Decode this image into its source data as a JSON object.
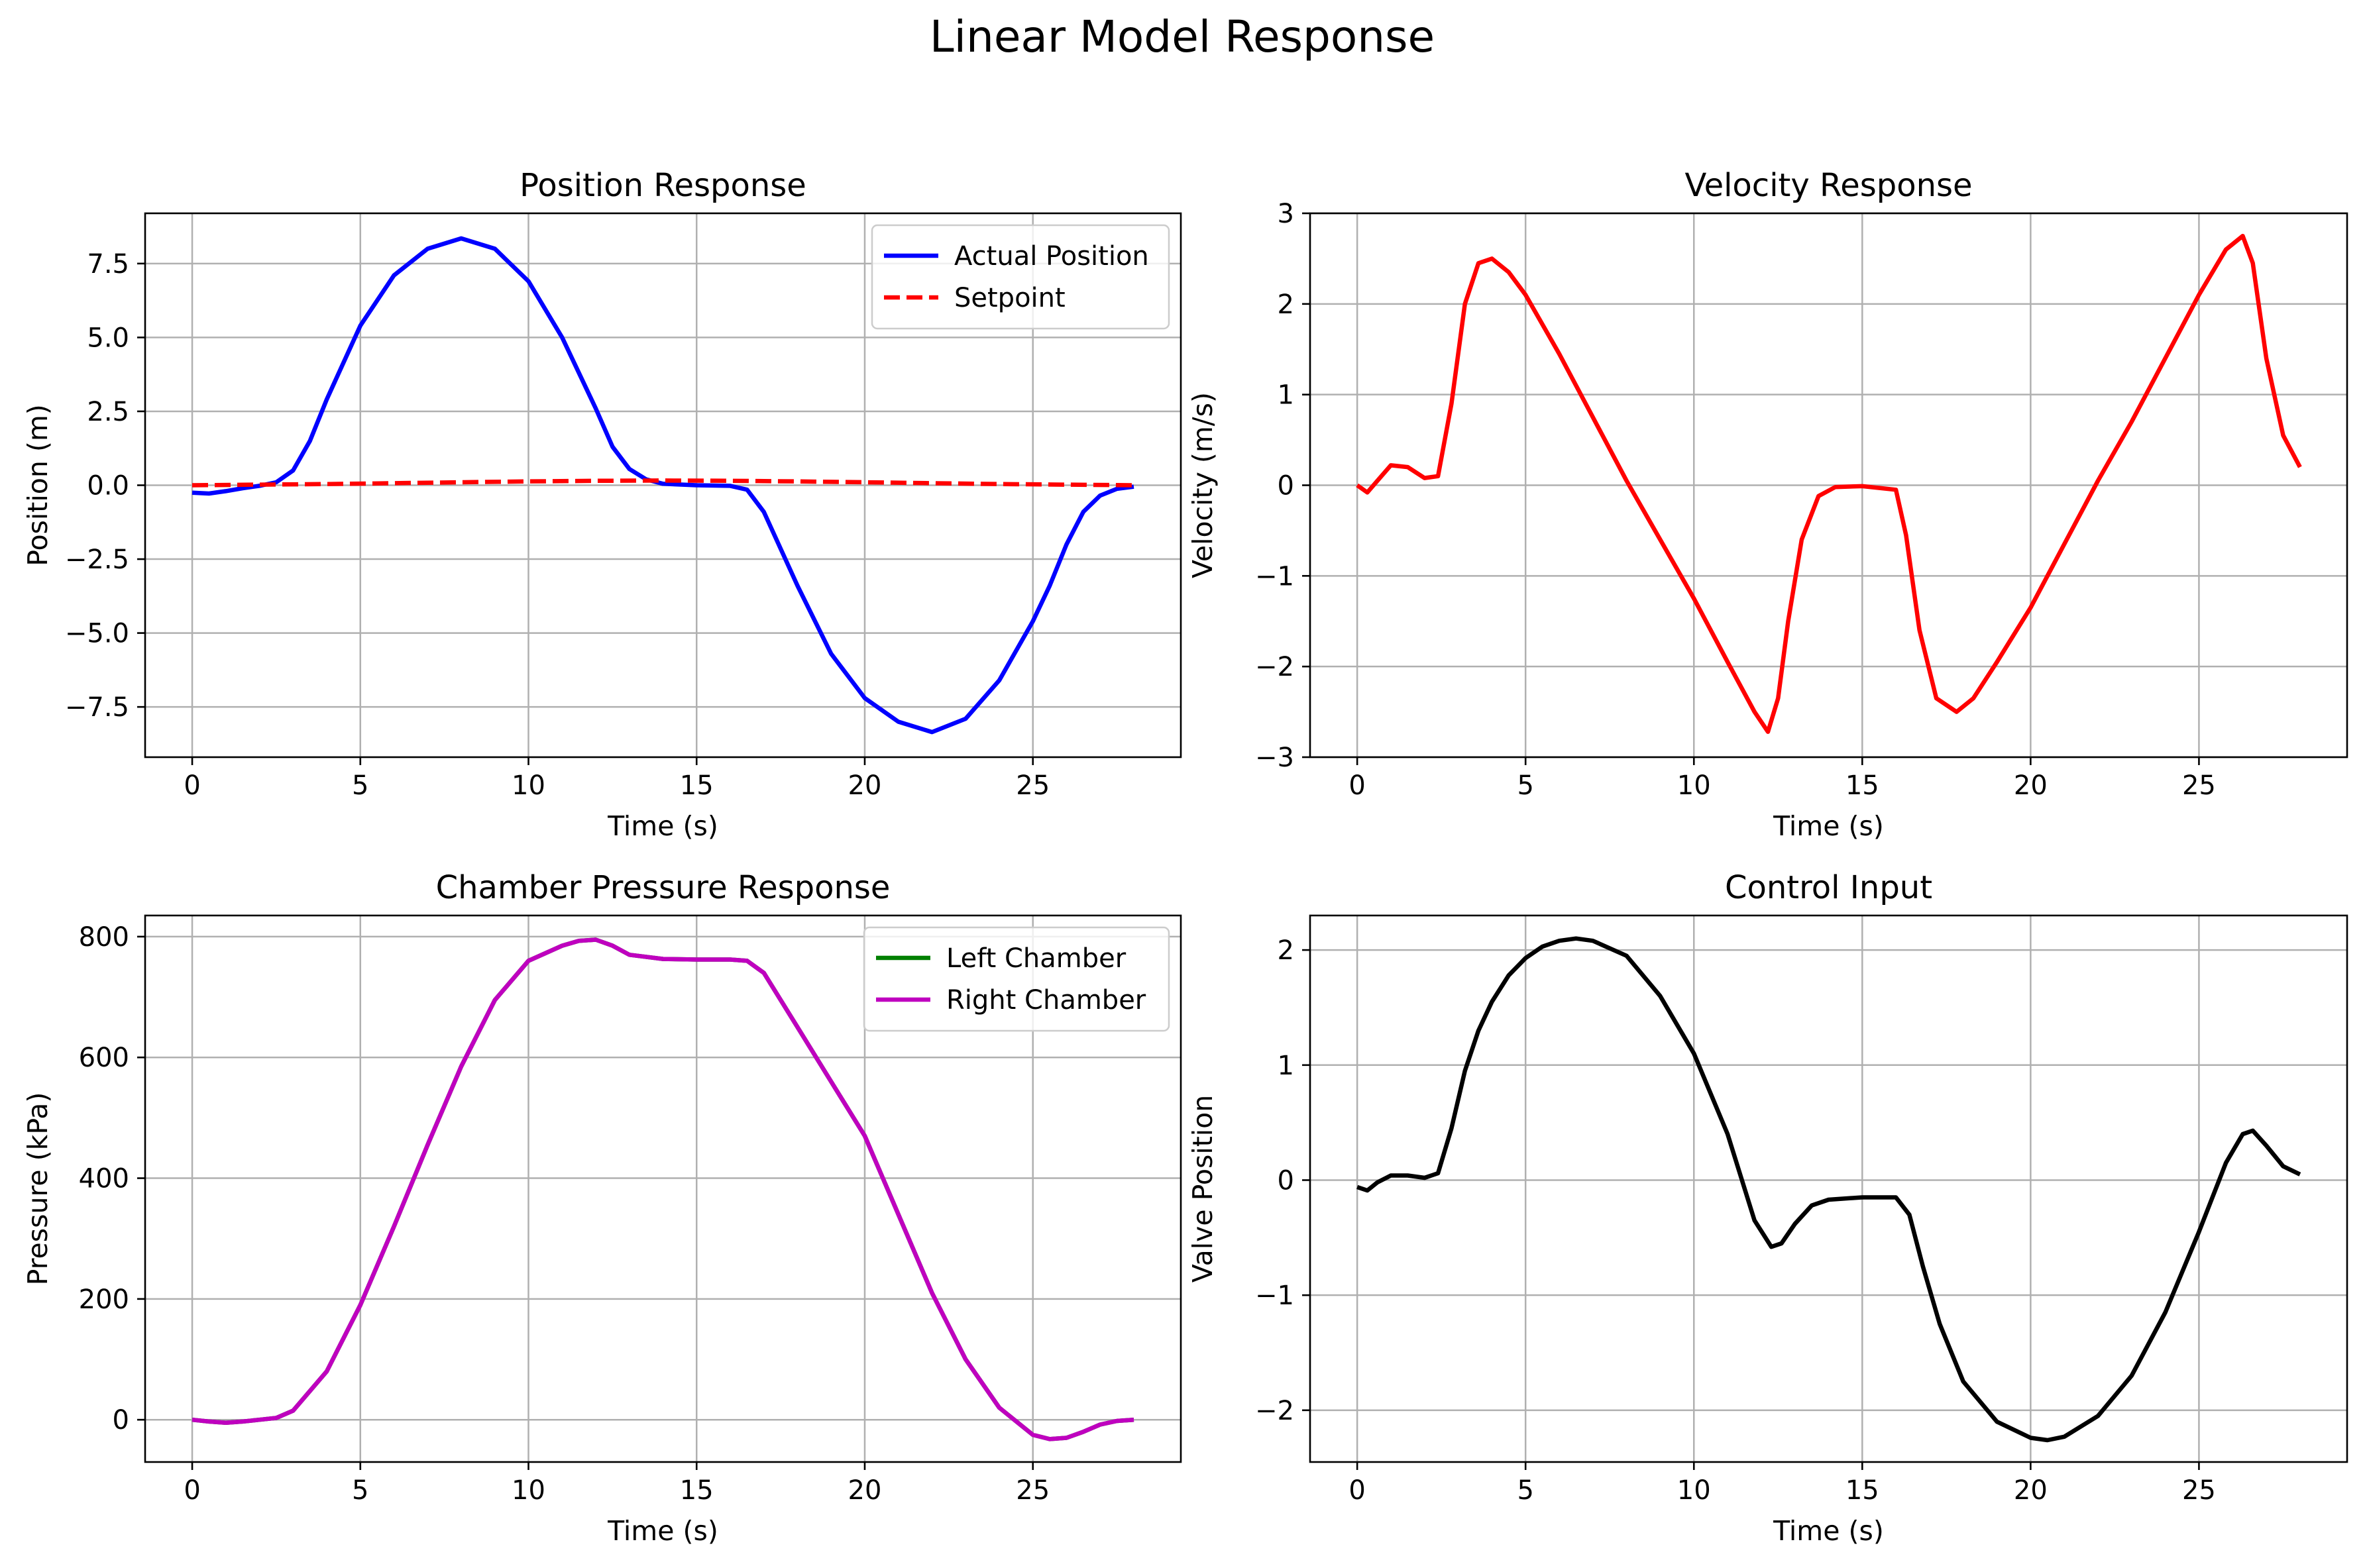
{
  "figure": {
    "suptitle": "Linear Model Response",
    "background": "#ffffff"
  },
  "chart_data": [
    {
      "type": "line",
      "title": "Position Response",
      "xlabel": "Time (s)",
      "ylabel": "Position (m)",
      "xlim": [
        -1.4,
        29.4
      ],
      "ylim": [
        -9.2,
        9.2
      ],
      "xticks": [
        0,
        5,
        10,
        15,
        20,
        25
      ],
      "xticklabels": [
        "0",
        "5",
        "10",
        "15",
        "20",
        "25"
      ],
      "yticks": [
        -7.5,
        -5.0,
        -2.5,
        0.0,
        2.5,
        5.0,
        7.5
      ],
      "yticklabels": [
        "−7.5",
        "−5.0",
        "−2.5",
        "0.0",
        "2.5",
        "5.0",
        "7.5"
      ],
      "grid": true,
      "legend": "top-right",
      "series": [
        {
          "name": "Actual Position",
          "color": "#0000ff",
          "style": "solid",
          "x": [
            0,
            0.5,
            1,
            1.5,
            2,
            2.5,
            3,
            3.5,
            4,
            5,
            6,
            7,
            8,
            9,
            10,
            11,
            12,
            12.5,
            13,
            13.5,
            14,
            15,
            16,
            16.5,
            17,
            18,
            19,
            20,
            21,
            22,
            23,
            24,
            25,
            25.5,
            26,
            26.5,
            27,
            27.5,
            28
          ],
          "y": [
            -0.25,
            -0.28,
            -0.2,
            -0.1,
            -0.02,
            0.1,
            0.5,
            1.5,
            2.9,
            5.4,
            7.1,
            8.0,
            8.35,
            8.0,
            6.9,
            5.0,
            2.6,
            1.3,
            0.55,
            0.2,
            0.05,
            0.0,
            -0.02,
            -0.15,
            -0.9,
            -3.4,
            -5.7,
            -7.2,
            -8.0,
            -8.35,
            -7.9,
            -6.6,
            -4.6,
            -3.4,
            -2.0,
            -0.9,
            -0.35,
            -0.12,
            -0.05
          ]
        },
        {
          "name": "Setpoint",
          "color": "#ff0000",
          "style": "dashed",
          "x": [
            0,
            2,
            4,
            6,
            8,
            10,
            12,
            14,
            16,
            18,
            20,
            22,
            24,
            26,
            28
          ],
          "y": [
            0.0,
            0.02,
            0.04,
            0.07,
            0.1,
            0.13,
            0.15,
            0.16,
            0.15,
            0.13,
            0.1,
            0.07,
            0.04,
            0.02,
            0.0
          ]
        }
      ]
    },
    {
      "type": "line",
      "title": "Velocity Response",
      "xlabel": "Time (s)",
      "ylabel": "Velocity (m/s)",
      "xlim": [
        -1.4,
        29.4
      ],
      "ylim": [
        -3.0,
        3.0
      ],
      "xticks": [
        0,
        5,
        10,
        15,
        20,
        25
      ],
      "xticklabels": [
        "0",
        "5",
        "10",
        "15",
        "20",
        "25"
      ],
      "yticks": [
        -3,
        -2,
        -1,
        0,
        1,
        2,
        3
      ],
      "yticklabels": [
        "−3",
        "−2",
        "−1",
        "0",
        "1",
        "2",
        "3"
      ],
      "grid": true,
      "legend": "none",
      "series": [
        {
          "name": "",
          "color": "#ff0000",
          "style": "solid",
          "x": [
            0,
            0.3,
            0.6,
            1,
            1.5,
            2,
            2.4,
            2.8,
            3.2,
            3.6,
            4,
            4.5,
            5,
            6,
            7,
            8,
            9,
            10,
            11,
            11.8,
            12.2,
            12.5,
            12.8,
            13.2,
            13.7,
            14.2,
            15,
            16,
            16.3,
            16.7,
            17.2,
            17.8,
            18.3,
            19,
            20,
            21,
            22,
            23,
            24,
            25,
            25.8,
            26.3,
            26.6,
            27,
            27.5,
            28
          ],
          "y": [
            0,
            -0.08,
            0.05,
            0.22,
            0.2,
            0.08,
            0.1,
            0.9,
            2.0,
            2.45,
            2.5,
            2.35,
            2.1,
            1.45,
            0.75,
            0.05,
            -0.6,
            -1.25,
            -1.95,
            -2.5,
            -2.72,
            -2.35,
            -1.5,
            -0.6,
            -0.12,
            -0.02,
            -0.01,
            -0.05,
            -0.55,
            -1.6,
            -2.35,
            -2.5,
            -2.35,
            -1.95,
            -1.35,
            -0.65,
            0.05,
            0.7,
            1.4,
            2.1,
            2.6,
            2.75,
            2.45,
            1.4,
            0.55,
            0.2
          ]
        }
      ]
    },
    {
      "type": "line",
      "title": "Chamber Pressure Response",
      "xlabel": "Time (s)",
      "ylabel": "Pressure (kPa)",
      "xlim": [
        -1.4,
        29.4
      ],
      "ylim": [
        -70,
        835
      ],
      "xticks": [
        0,
        5,
        10,
        15,
        20,
        25
      ],
      "xticklabels": [
        "0",
        "5",
        "10",
        "15",
        "20",
        "25"
      ],
      "yticks": [
        0,
        200,
        400,
        600,
        800
      ],
      "yticklabels": [
        "0",
        "200",
        "400",
        "600",
        "800"
      ],
      "grid": true,
      "legend": "top-right",
      "series": [
        {
          "name": "Left Chamber",
          "color": "#008000",
          "style": "solid",
          "x": [
            0,
            0.5,
            1,
            1.5,
            2,
            2.5,
            3,
            4,
            5,
            6,
            7,
            8,
            9,
            10,
            11,
            11.5,
            12,
            12.5,
            13,
            14,
            15,
            16,
            16.5,
            17,
            18,
            19,
            20,
            21,
            22,
            23,
            24,
            25,
            25.5,
            26,
            26.5,
            27,
            27.5,
            28
          ],
          "y": [
            0,
            -3,
            -5,
            -3,
            0,
            3,
            15,
            80,
            190,
            320,
            455,
            585,
            695,
            760,
            785,
            793,
            795,
            785,
            770,
            763,
            762,
            762,
            760,
            740,
            650,
            560,
            470,
            340,
            210,
            100,
            20,
            -25,
            -32,
            -30,
            -20,
            -8,
            -2,
            0
          ]
        },
        {
          "name": "Right Chamber",
          "color": "#bf00bf",
          "style": "solid",
          "x": [
            0,
            0.5,
            1,
            1.5,
            2,
            2.5,
            3,
            4,
            5,
            6,
            7,
            8,
            9,
            10,
            11,
            11.5,
            12,
            12.5,
            13,
            14,
            15,
            16,
            16.5,
            17,
            18,
            19,
            20,
            21,
            22,
            23,
            24,
            25,
            25.5,
            26,
            26.5,
            27,
            27.5,
            28
          ],
          "y": [
            0,
            -3,
            -5,
            -3,
            0,
            3,
            15,
            80,
            190,
            320,
            455,
            585,
            695,
            760,
            785,
            793,
            795,
            785,
            770,
            763,
            762,
            762,
            760,
            740,
            650,
            560,
            470,
            340,
            210,
            100,
            20,
            -25,
            -32,
            -30,
            -20,
            -8,
            -2,
            0
          ]
        }
      ]
    },
    {
      "type": "line",
      "title": "Control Input",
      "xlabel": "Time (s)",
      "ylabel": "Valve Position",
      "xlim": [
        -1.4,
        29.4
      ],
      "ylim": [
        -2.45,
        2.3
      ],
      "xticks": [
        0,
        5,
        10,
        15,
        20,
        25
      ],
      "xticklabels": [
        "0",
        "5",
        "10",
        "15",
        "20",
        "25"
      ],
      "yticks": [
        -2,
        -1,
        0,
        1,
        2
      ],
      "yticklabels": [
        "−2",
        "−1",
        "0",
        "1",
        "2"
      ],
      "grid": true,
      "legend": "none",
      "series": [
        {
          "name": "",
          "color": "#000000",
          "style": "solid",
          "x": [
            0,
            0.3,
            0.6,
            1,
            1.5,
            2,
            2.4,
            2.8,
            3.2,
            3.6,
            4,
            4.5,
            5,
            5.5,
            6,
            6.5,
            7,
            8,
            9,
            10,
            11,
            11.8,
            12.3,
            12.6,
            13,
            13.5,
            14,
            15,
            16,
            16.4,
            16.8,
            17.3,
            18,
            19,
            20,
            20.5,
            21,
            22,
            23,
            24,
            25,
            25.8,
            26.3,
            26.6,
            27,
            27.5,
            28
          ],
          "y": [
            -0.06,
            -0.09,
            -0.02,
            0.04,
            0.04,
            0.02,
            0.06,
            0.45,
            0.95,
            1.3,
            1.55,
            1.78,
            1.93,
            2.03,
            2.08,
            2.1,
            2.08,
            1.95,
            1.6,
            1.1,
            0.4,
            -0.35,
            -0.58,
            -0.55,
            -0.38,
            -0.22,
            -0.17,
            -0.15,
            -0.15,
            -0.3,
            -0.75,
            -1.25,
            -1.75,
            -2.1,
            -2.24,
            -2.26,
            -2.23,
            -2.05,
            -1.7,
            -1.15,
            -0.45,
            0.15,
            0.4,
            0.43,
            0.3,
            0.12,
            0.05
          ]
        }
      ]
    }
  ]
}
